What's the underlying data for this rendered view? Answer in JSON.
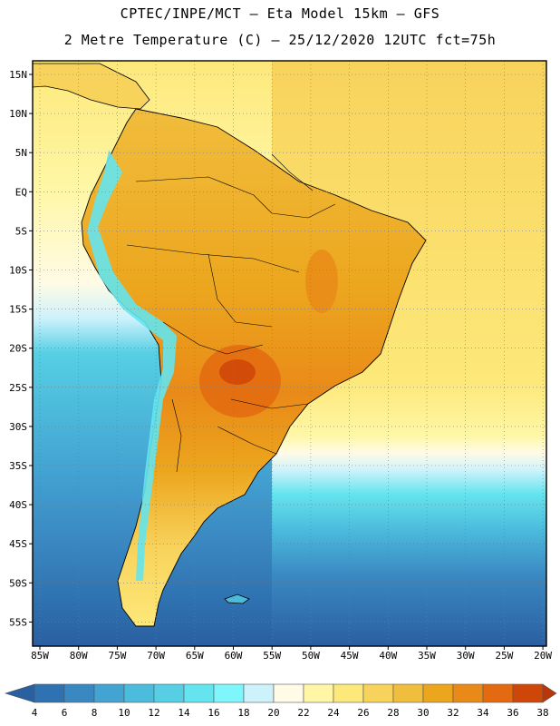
{
  "header": {
    "line1": "CPTEC/INPE/MCT –  Eta Model 15km – GFS",
    "line2": "2 Metre Temperature (C) – 25/12/2020 12UTC fct=75h"
  },
  "map": {
    "lat_labels": [
      "15N",
      "10N",
      "5N",
      "EQ",
      "5S",
      "10S",
      "15S",
      "20S",
      "25S",
      "30S",
      "35S",
      "40S",
      "45S",
      "50S",
      "55S"
    ],
    "lon_labels": [
      "85W",
      "80W",
      "75W",
      "70W",
      "65W",
      "60W",
      "55W",
      "50W",
      "45W",
      "40W",
      "35W",
      "30W",
      "25W",
      "20W"
    ]
  },
  "colorbar": {
    "labels": [
      "4",
      "6",
      "8",
      "10",
      "12",
      "14",
      "16",
      "18",
      "20",
      "22",
      "24",
      "26",
      "28",
      "30",
      "32",
      "34",
      "36",
      "38"
    ],
    "colors": [
      "#2a5fa0",
      "#2f72b1",
      "#3a88c2",
      "#43a3d2",
      "#4cbcdd",
      "#56cfe4",
      "#64e4ee",
      "#7ef6fb",
      "#cdf2fb",
      "#fffbe6",
      "#fff7a6",
      "#fde87a",
      "#f8d35c",
      "#f1bd3c",
      "#eca61e",
      "#e98a18",
      "#e36a10",
      "#cf4708",
      "#b8360a"
    ]
  }
}
